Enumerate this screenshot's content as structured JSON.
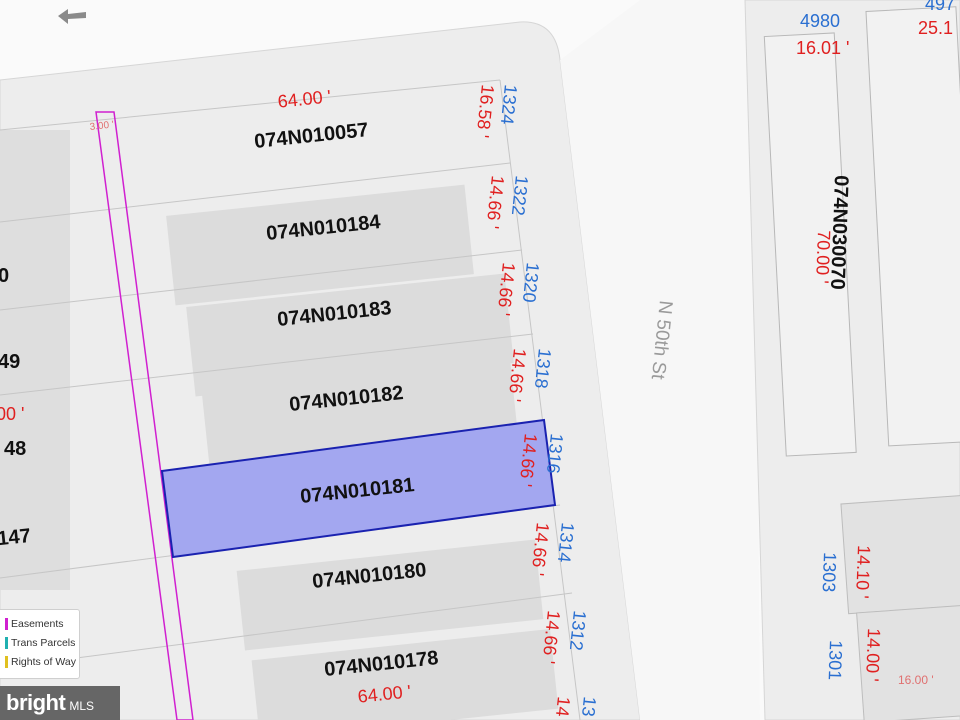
{
  "street": {
    "name": "N 50th St"
  },
  "parcels": [
    {
      "id": "074N010057",
      "width_ft": "16.58 '",
      "address": "1324",
      "selected": false
    },
    {
      "id": "074N010184",
      "width_ft": "14.66 '",
      "address": "1322",
      "selected": false
    },
    {
      "id": "074N010183",
      "width_ft": "14.66 '",
      "address": "1320",
      "selected": false
    },
    {
      "id": "074N010182",
      "width_ft": "14.66 '",
      "address": "1318",
      "selected": false
    },
    {
      "id": "074N010181",
      "width_ft": "14.66 '",
      "address": "1316",
      "selected": true
    },
    {
      "id": "074N010180",
      "width_ft": "14.66 '",
      "address": "1314",
      "selected": false
    },
    {
      "id": "074N010178",
      "width_ft": "14.66 '",
      "address": "1312",
      "selected": false
    },
    {
      "id": "",
      "width_ft": "14",
      "address": "13",
      "selected": false
    }
  ],
  "depth_top": "64.00 '",
  "depth_bottom": "64.00 '",
  "easement_width": "3.00 '",
  "left_block": {
    "labels": [
      "0",
      "49",
      "00 '",
      "48",
      "147"
    ]
  },
  "right_block": {
    "parcel_id": "074N030070",
    "depth": "70.00 '",
    "top_addr_1": "4980",
    "top_addr_2": "497",
    "top_dim_1": "16.01 '",
    "top_dim_2": "25.1",
    "addr_1303": "1303",
    "addr_1301": "1301",
    "dim_1410": "14.10 '",
    "dim_1400": "14.00 '",
    "dim_1600": "16.00 '"
  },
  "legend": {
    "items": [
      {
        "label": "Easements",
        "color": "#d020d0"
      },
      {
        "label": "Trans Parcels",
        "color": "#20b0b0"
      },
      {
        "label": "Rights of Way",
        "color": "#e0c020"
      }
    ]
  },
  "brand": {
    "name": "bright",
    "suffix": "MLS"
  },
  "colors": {
    "selected_fill": "#9fa3f0",
    "selected_stroke": "#1a22b0",
    "easement": "#d020d0"
  }
}
